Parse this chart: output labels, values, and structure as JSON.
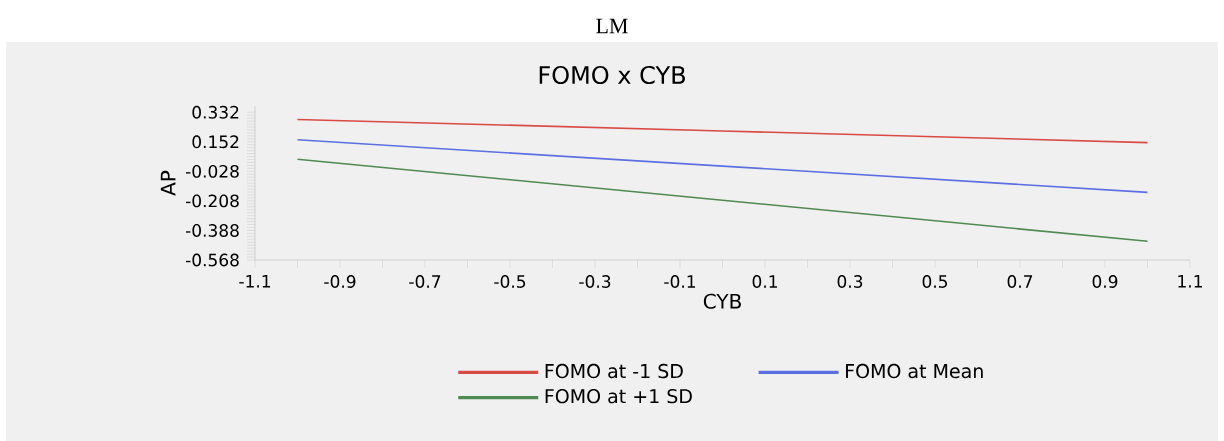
{
  "chart_data": {
    "type": "line",
    "title": "LM",
    "subtitle": "FOMO x CYB",
    "xlabel": "CYB",
    "ylabel": "AP",
    "series": [
      {
        "name": "FOMO at -1 SD",
        "color": "#d94a44",
        "x": [
          -1,
          0,
          1
        ],
        "values": [
          0.288,
          0.218,
          0.147
        ]
      },
      {
        "name": "FOMO at Mean",
        "color": "#5c6fe0",
        "x": [
          -1,
          0,
          1
        ],
        "values": [
          0.164,
          0.004,
          -0.156
        ]
      },
      {
        "name": "FOMO at +1 SD",
        "color": "#4e8a52",
        "x": [
          -1,
          0,
          1
        ],
        "values": [
          0.046,
          -0.204,
          -0.454
        ]
      }
    ],
    "xlim": [
      -1.1,
      1.1
    ],
    "xticks": [
      -1.1,
      -0.9,
      -0.7,
      -0.5,
      -0.3,
      -0.1,
      0.1,
      0.3,
      0.5,
      0.7,
      0.9,
      1.1
    ],
    "ylim": [
      -0.568,
      0.37
    ],
    "yticks": [
      -0.568,
      -0.388,
      -0.208,
      -0.028,
      0.152,
      0.332
    ],
    "grid": false,
    "legend": "bottom",
    "marker": "none",
    "line_style": "solid"
  }
}
